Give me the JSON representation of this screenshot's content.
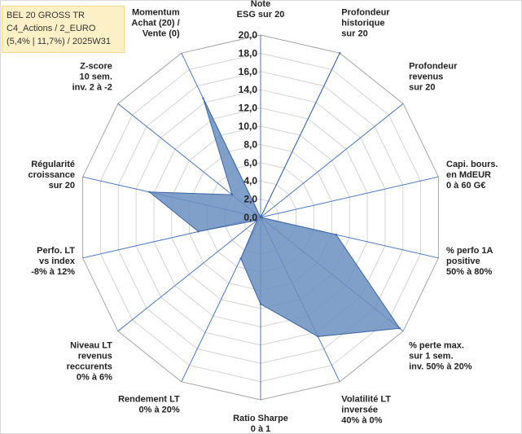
{
  "title_lines": [
    "BEL 20 GROSS TR",
    "C4_Actions / 2_EURO",
    "(5,4% | 11,7%) / 2025W31"
  ],
  "chart_data": {
    "type": "radar",
    "range": [
      0,
      20
    ],
    "tick_step": 2,
    "tick_labels": [
      "0,0",
      "2,0",
      "4,0",
      "6,0",
      "8,0",
      "10,0",
      "12,0",
      "14,0",
      "16,0",
      "18,0",
      "20,0"
    ],
    "axes": [
      {
        "label": [
          "Note",
          "ESG sur 20"
        ],
        "value": 0
      },
      {
        "label": [
          "Profondeur",
          "historique",
          "sur 20"
        ],
        "value": 20
      },
      {
        "label": [
          "Profondeur",
          "revenus",
          "sur 20"
        ],
        "value": 0
      },
      {
        "label": [
          "Capi. bours.",
          "en MdEUR",
          "0 à 60 G€"
        ],
        "value": 0
      },
      {
        "label": [
          "% perfo 1A",
          "positive",
          "50% à 80%"
        ],
        "value": 8.5
      },
      {
        "label": [
          "% perte max.",
          "sur 1 sem.",
          "inv. 50% à 20%"
        ],
        "value": 19.5
      },
      {
        "label": [
          "Volatilité LT",
          "inversée",
          "40% à 0%"
        ],
        "value": 14.5
      },
      {
        "label": [
          "Ratio Sharpe",
          "0 à 1"
        ],
        "value": 9.5
      },
      {
        "label": [
          "Rendement LT",
          "0% à 20%"
        ],
        "value": 5.0
      },
      {
        "label": [
          "Niveau LT",
          "revenus",
          "reccurents",
          "0% à 6%"
        ],
        "value": 0.5
      },
      {
        "label": [
          "Perfo. LT",
          "vs index",
          "-8% à 12%"
        ],
        "value": 7.0
      },
      {
        "label": [
          "Régularité",
          "croissance",
          "sur 20"
        ],
        "value": 12.5
      },
      {
        "label": [
          "Z-score",
          "10 sem.",
          "inv. 2 à -2"
        ],
        "value": 4.0
      },
      {
        "label": [
          "Momentum",
          "Achat (20) /",
          "Vente (0)"
        ],
        "value": 14.5
      }
    ],
    "colors": {
      "fill": "#6b8fc0",
      "stroke": "#3d66a6",
      "grid": "#d4d4d4",
      "spoke": "#4a78c0"
    }
  }
}
